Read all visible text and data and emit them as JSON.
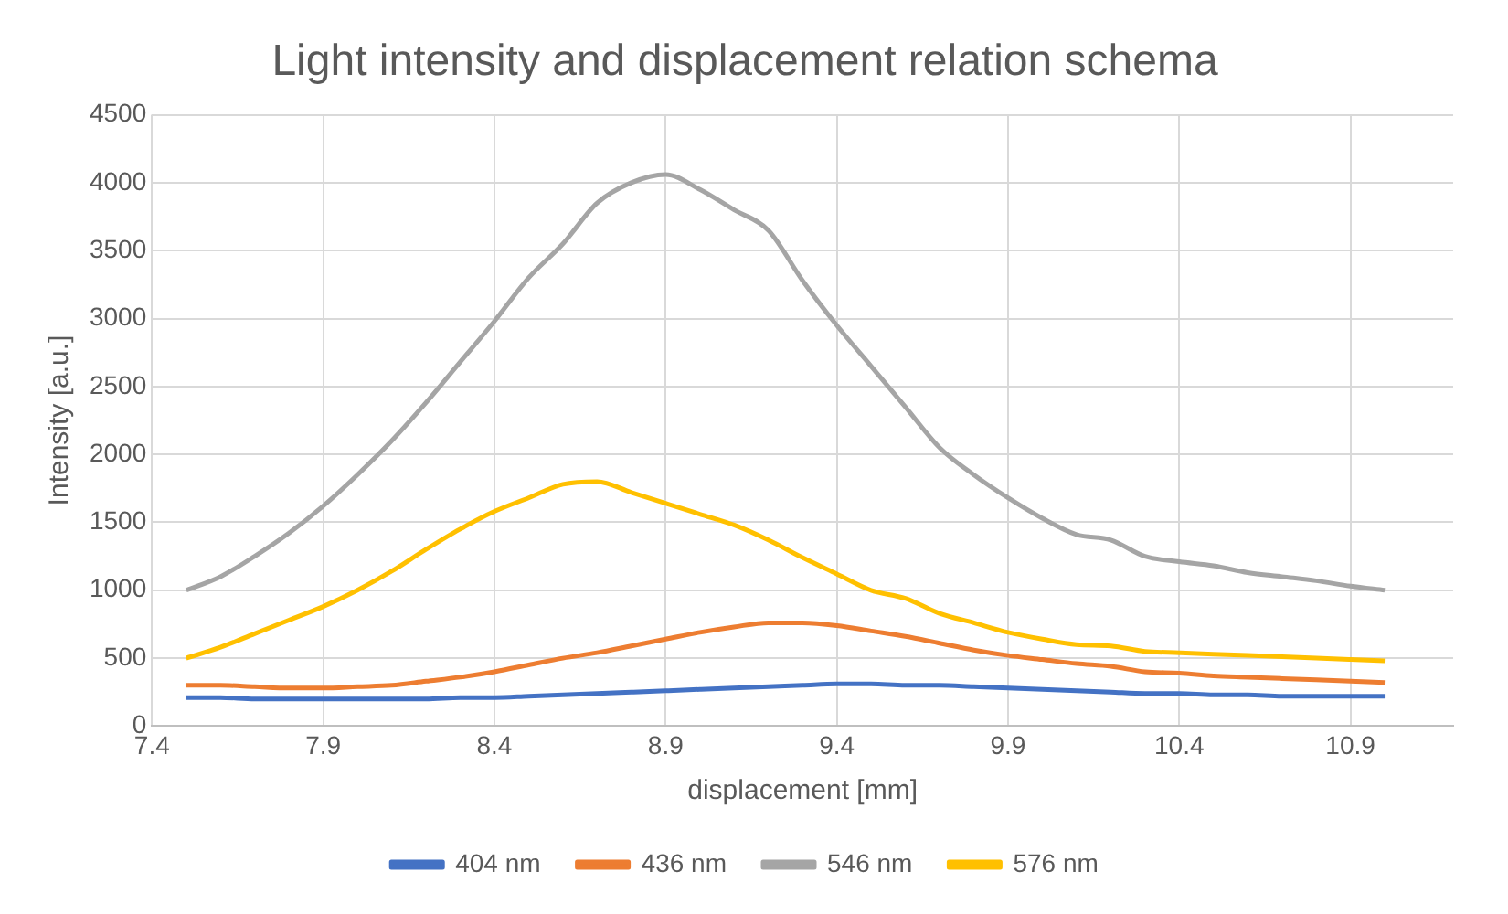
{
  "chart_data": {
    "type": "line",
    "title": "Light intensity and displacement relation schema",
    "xlabel": "displacement [mm]",
    "ylabel": "Intensity [a.u.]",
    "x": [
      7.5,
      7.6,
      7.7,
      7.8,
      7.9,
      8.0,
      8.1,
      8.2,
      8.3,
      8.4,
      8.5,
      8.6,
      8.7,
      8.8,
      8.9,
      9.0,
      9.1,
      9.2,
      9.3,
      9.4,
      9.5,
      9.6,
      9.7,
      9.8,
      9.9,
      10.0,
      10.1,
      10.2,
      10.3,
      10.4,
      10.5,
      10.6,
      10.7,
      10.8,
      10.9,
      11.0
    ],
    "series": [
      {
        "name": "404 nm",
        "color": "#4472c4",
        "values": [
          210,
          210,
          200,
          200,
          200,
          200,
          200,
          200,
          210,
          210,
          220,
          230,
          240,
          250,
          260,
          270,
          280,
          290,
          300,
          310,
          310,
          300,
          300,
          290,
          280,
          270,
          260,
          250,
          240,
          240,
          230,
          230,
          220,
          220,
          220,
          220
        ]
      },
      {
        "name": "436 nm",
        "color": "#ed7d31",
        "values": [
          300,
          300,
          290,
          280,
          280,
          290,
          300,
          330,
          360,
          400,
          450,
          500,
          540,
          590,
          640,
          690,
          730,
          760,
          760,
          740,
          700,
          660,
          610,
          560,
          520,
          490,
          460,
          440,
          400,
          390,
          370,
          360,
          350,
          340,
          330,
          320
        ]
      },
      {
        "name": "546 nm",
        "color": "#a5a5a5",
        "values": [
          1000,
          1100,
          1250,
          1420,
          1620,
          1850,
          2100,
          2380,
          2680,
          2980,
          3300,
          3550,
          3850,
          4000,
          4060,
          3950,
          3800,
          3650,
          3280,
          2950,
          2650,
          2350,
          2050,
          1850,
          1680,
          1530,
          1410,
          1370,
          1250,
          1210,
          1180,
          1130,
          1100,
          1070,
          1030,
          1000
        ]
      },
      {
        "name": "576 nm",
        "color": "#ffc000",
        "values": [
          500,
          580,
          680,
          780,
          880,
          1000,
          1140,
          1300,
          1450,
          1580,
          1680,
          1780,
          1800,
          1720,
          1640,
          1560,
          1480,
          1370,
          1240,
          1120,
          1000,
          940,
          830,
          760,
          690,
          640,
          600,
          590,
          550,
          540,
          530,
          520,
          510,
          500,
          490,
          480
        ]
      }
    ],
    "xlim": [
      7.4,
      11.2
    ],
    "xticks": [
      7.4,
      7.9,
      8.4,
      8.9,
      9.4,
      9.9,
      10.4,
      10.9
    ],
    "ylim": [
      0,
      4500
    ],
    "yticks": [
      0,
      500,
      1000,
      1500,
      2000,
      2500,
      3000,
      3500,
      4000,
      4500
    ],
    "grid": true,
    "legend": "bottom",
    "marker": "none",
    "line_style": "solid"
  }
}
